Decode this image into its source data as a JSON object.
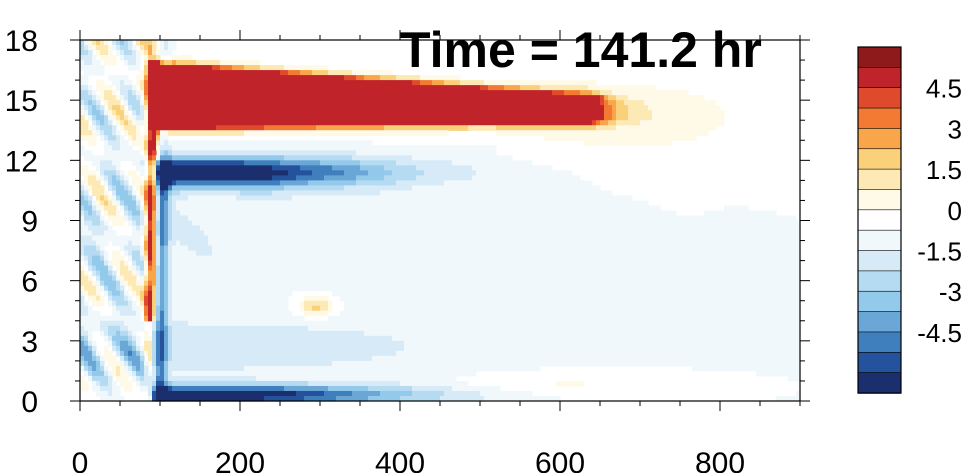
{
  "chart_data": {
    "type": "heatmap",
    "title": "Time = 141.2 hr",
    "xlabel": "",
    "ylabel": "",
    "xlim": [
      0,
      900
    ],
    "ylim": [
      0,
      18
    ],
    "x_ticks": [
      0,
      200,
      400,
      600,
      800
    ],
    "y_ticks": [
      0,
      3,
      6,
      9,
      12,
      15,
      18
    ],
    "grid": false,
    "colorbar": {
      "position": "right",
      "tick_labels": [
        "4.5",
        "3",
        "1.5",
        "0",
        "-1.5",
        "-3",
        "-4.5"
      ],
      "levels": [
        -5.25,
        -4.5,
        -3.75,
        -3,
        -2.25,
        -1.5,
        -0.75,
        0,
        0.75,
        1.5,
        2.25,
        3,
        3.75,
        4.5,
        5.25
      ],
      "colors": [
        "#1b2f6e",
        "#24529c",
        "#3f7fbd",
        "#6aa6d6",
        "#93c9ea",
        "#b5dbf2",
        "#d6ebf7",
        "#f0f8fc",
        "#ffffff",
        "#fffae8",
        "#fde9b4",
        "#fbd07a",
        "#f9a54a",
        "#f27a33",
        "#e04a2c",
        "#c0242a",
        "#8e1a1c"
      ]
    },
    "features": [
      {
        "name": "upper-warm-jet",
        "x": [
          110,
          650
        ],
        "y": [
          12.9,
          17.2
        ],
        "value_max": 5.5
      },
      {
        "name": "cold-band-12km",
        "x": [
          100,
          420
        ],
        "y": [
          10.6,
          12.6
        ],
        "value_min": -5.5
      },
      {
        "name": "surface-cold-layer",
        "x": [
          90,
          420
        ],
        "y": [
          0,
          1
        ],
        "value_min": -5.5
      },
      {
        "name": "front-line",
        "x": [
          70,
          110
        ],
        "y": [
          0,
          18
        ],
        "value_max": 5.5
      },
      {
        "name": "warm-blob-300",
        "x": [
          270,
          320
        ],
        "y": [
          4.2,
          5.3
        ],
        "value_max": 2.5
      }
    ]
  }
}
